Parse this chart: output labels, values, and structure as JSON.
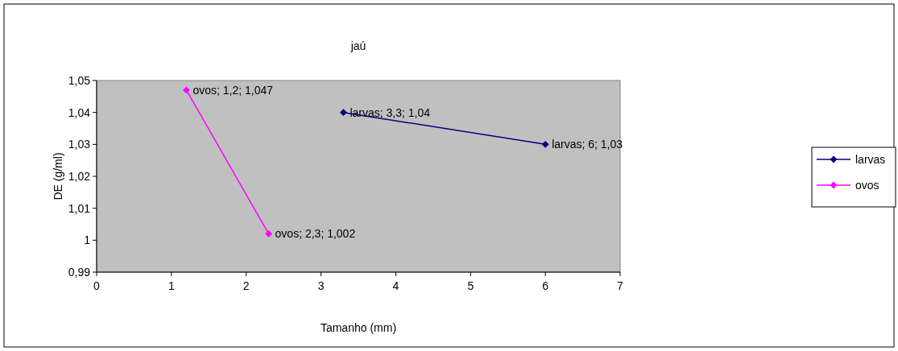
{
  "chart_data": {
    "type": "line",
    "title": "jaú",
    "xlabel": "Tamanho (mm)",
    "ylabel": "DE (g/ml)",
    "xlim": [
      0,
      7
    ],
    "xticks": [
      0,
      1,
      2,
      3,
      4,
      5,
      6,
      7
    ],
    "ylim": [
      0.99,
      1.05
    ],
    "yticks": [
      {
        "value": 0.99,
        "label": "0,99"
      },
      {
        "value": 1,
        "label": "1"
      },
      {
        "value": 1.01,
        "label": "1,01"
      },
      {
        "value": 1.02,
        "label": "1,02"
      },
      {
        "value": 1.03,
        "label": "1,03"
      },
      {
        "value": 1.04,
        "label": "1,04"
      },
      {
        "value": 1.05,
        "label": "1,05"
      }
    ],
    "series": [
      {
        "name": "larvas",
        "color": "#000080",
        "x": [
          3.3,
          6
        ],
        "values": [
          1.04,
          1.03
        ],
        "value_labels": [
          "larvas; 3,3; 1,04",
          "larvas; 6; 1,03"
        ]
      },
      {
        "name": "ovos",
        "color": "#ff00ff",
        "x": [
          1.2,
          2.3
        ],
        "values": [
          1.047,
          1.002
        ],
        "value_labels": [
          "ovos; 1,2; 1,047",
          "ovos; 2,3; 1,002"
        ]
      }
    ],
    "marker": "diamond",
    "grid": false,
    "legend": "right"
  }
}
